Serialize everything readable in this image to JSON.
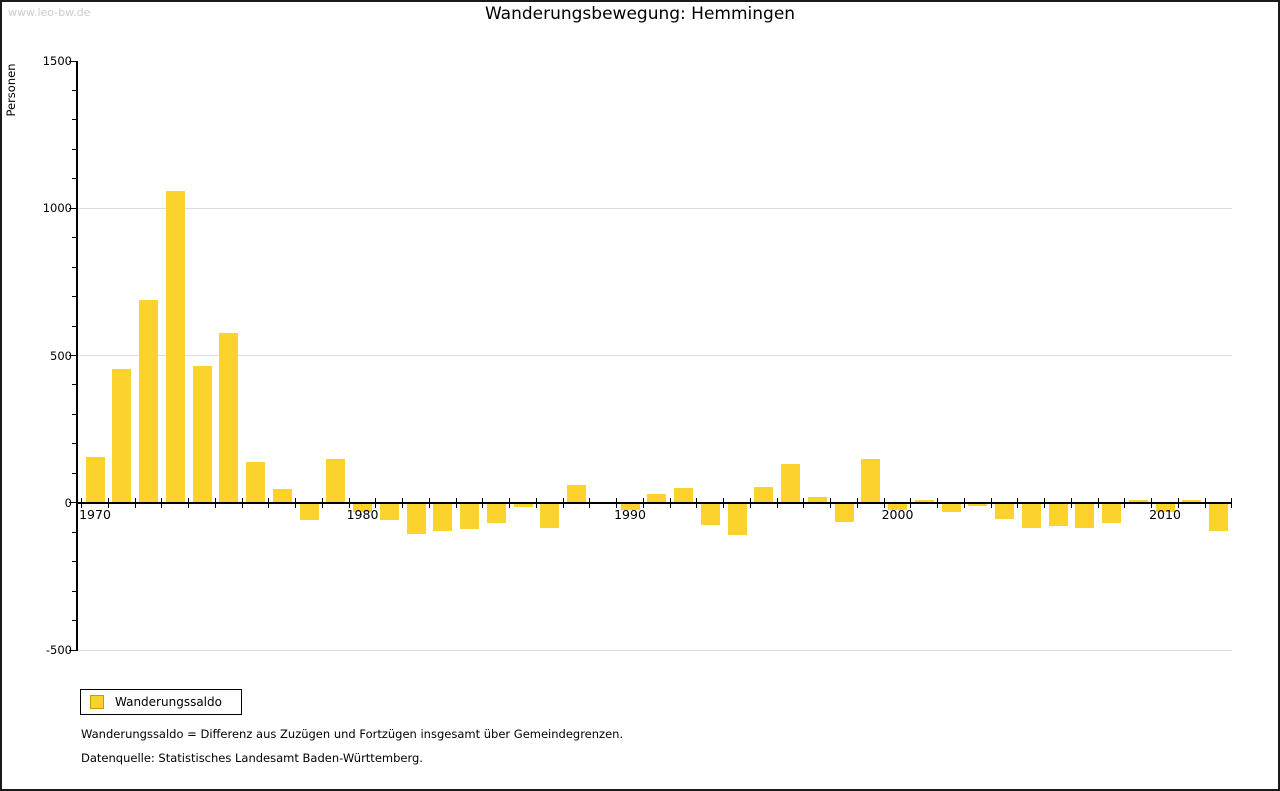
{
  "watermark": "www.leo-bw.de",
  "chart_data": {
    "type": "bar",
    "title": "Wanderungsbewegung: Hemmingen",
    "ylabel": "Personen",
    "xlabel": "",
    "ylim": [
      -500,
      1500
    ],
    "y_major_ticks": [
      -500,
      0,
      500,
      1000,
      1500
    ],
    "y_minor_step": 100,
    "gridlines_at": [
      -500,
      500,
      1000
    ],
    "grid": true,
    "legend_position": "bottom-left",
    "x_labeled_years": [
      1970,
      1980,
      1990,
      2000,
      2010
    ],
    "categories": [
      1970,
      1971,
      1972,
      1973,
      1974,
      1975,
      1976,
      1977,
      1978,
      1979,
      1980,
      1981,
      1982,
      1983,
      1984,
      1985,
      1986,
      1987,
      1988,
      1989,
      1990,
      1991,
      1992,
      1993,
      1994,
      1995,
      1996,
      1997,
      1998,
      1999,
      2000,
      2001,
      2002,
      2003,
      2004,
      2005,
      2006,
      2007,
      2008,
      2009,
      2010,
      2011,
      2012
    ],
    "series": [
      {
        "name": "Wanderungssaldo",
        "values": [
          155,
          455,
          690,
          1060,
          465,
          575,
          140,
          45,
          -60,
          150,
          -30,
          -60,
          -105,
          -95,
          -90,
          -70,
          -15,
          -85,
          60,
          0,
          -25,
          30,
          50,
          -75,
          -110,
          55,
          130,
          20,
          -65,
          150,
          -25,
          10,
          -30,
          -10,
          -55,
          -85,
          -80,
          -85,
          -70,
          10,
          -30,
          10,
          -95
        ]
      }
    ],
    "colors": {
      "bar": "#fcd22d",
      "bar_border": "#cc9900",
      "grid": "#dddddd",
      "axis": "#000000",
      "watermark": "#cccccc"
    }
  },
  "legend": {
    "label": "Wanderungssaldo"
  },
  "footnotes": [
    "Wanderungssaldo = Differenz aus Zuzügen und Fortzügen insgesamt über Gemeindegrenzen.",
    "Datenquelle: Statistisches Landesamt Baden-Württemberg."
  ]
}
